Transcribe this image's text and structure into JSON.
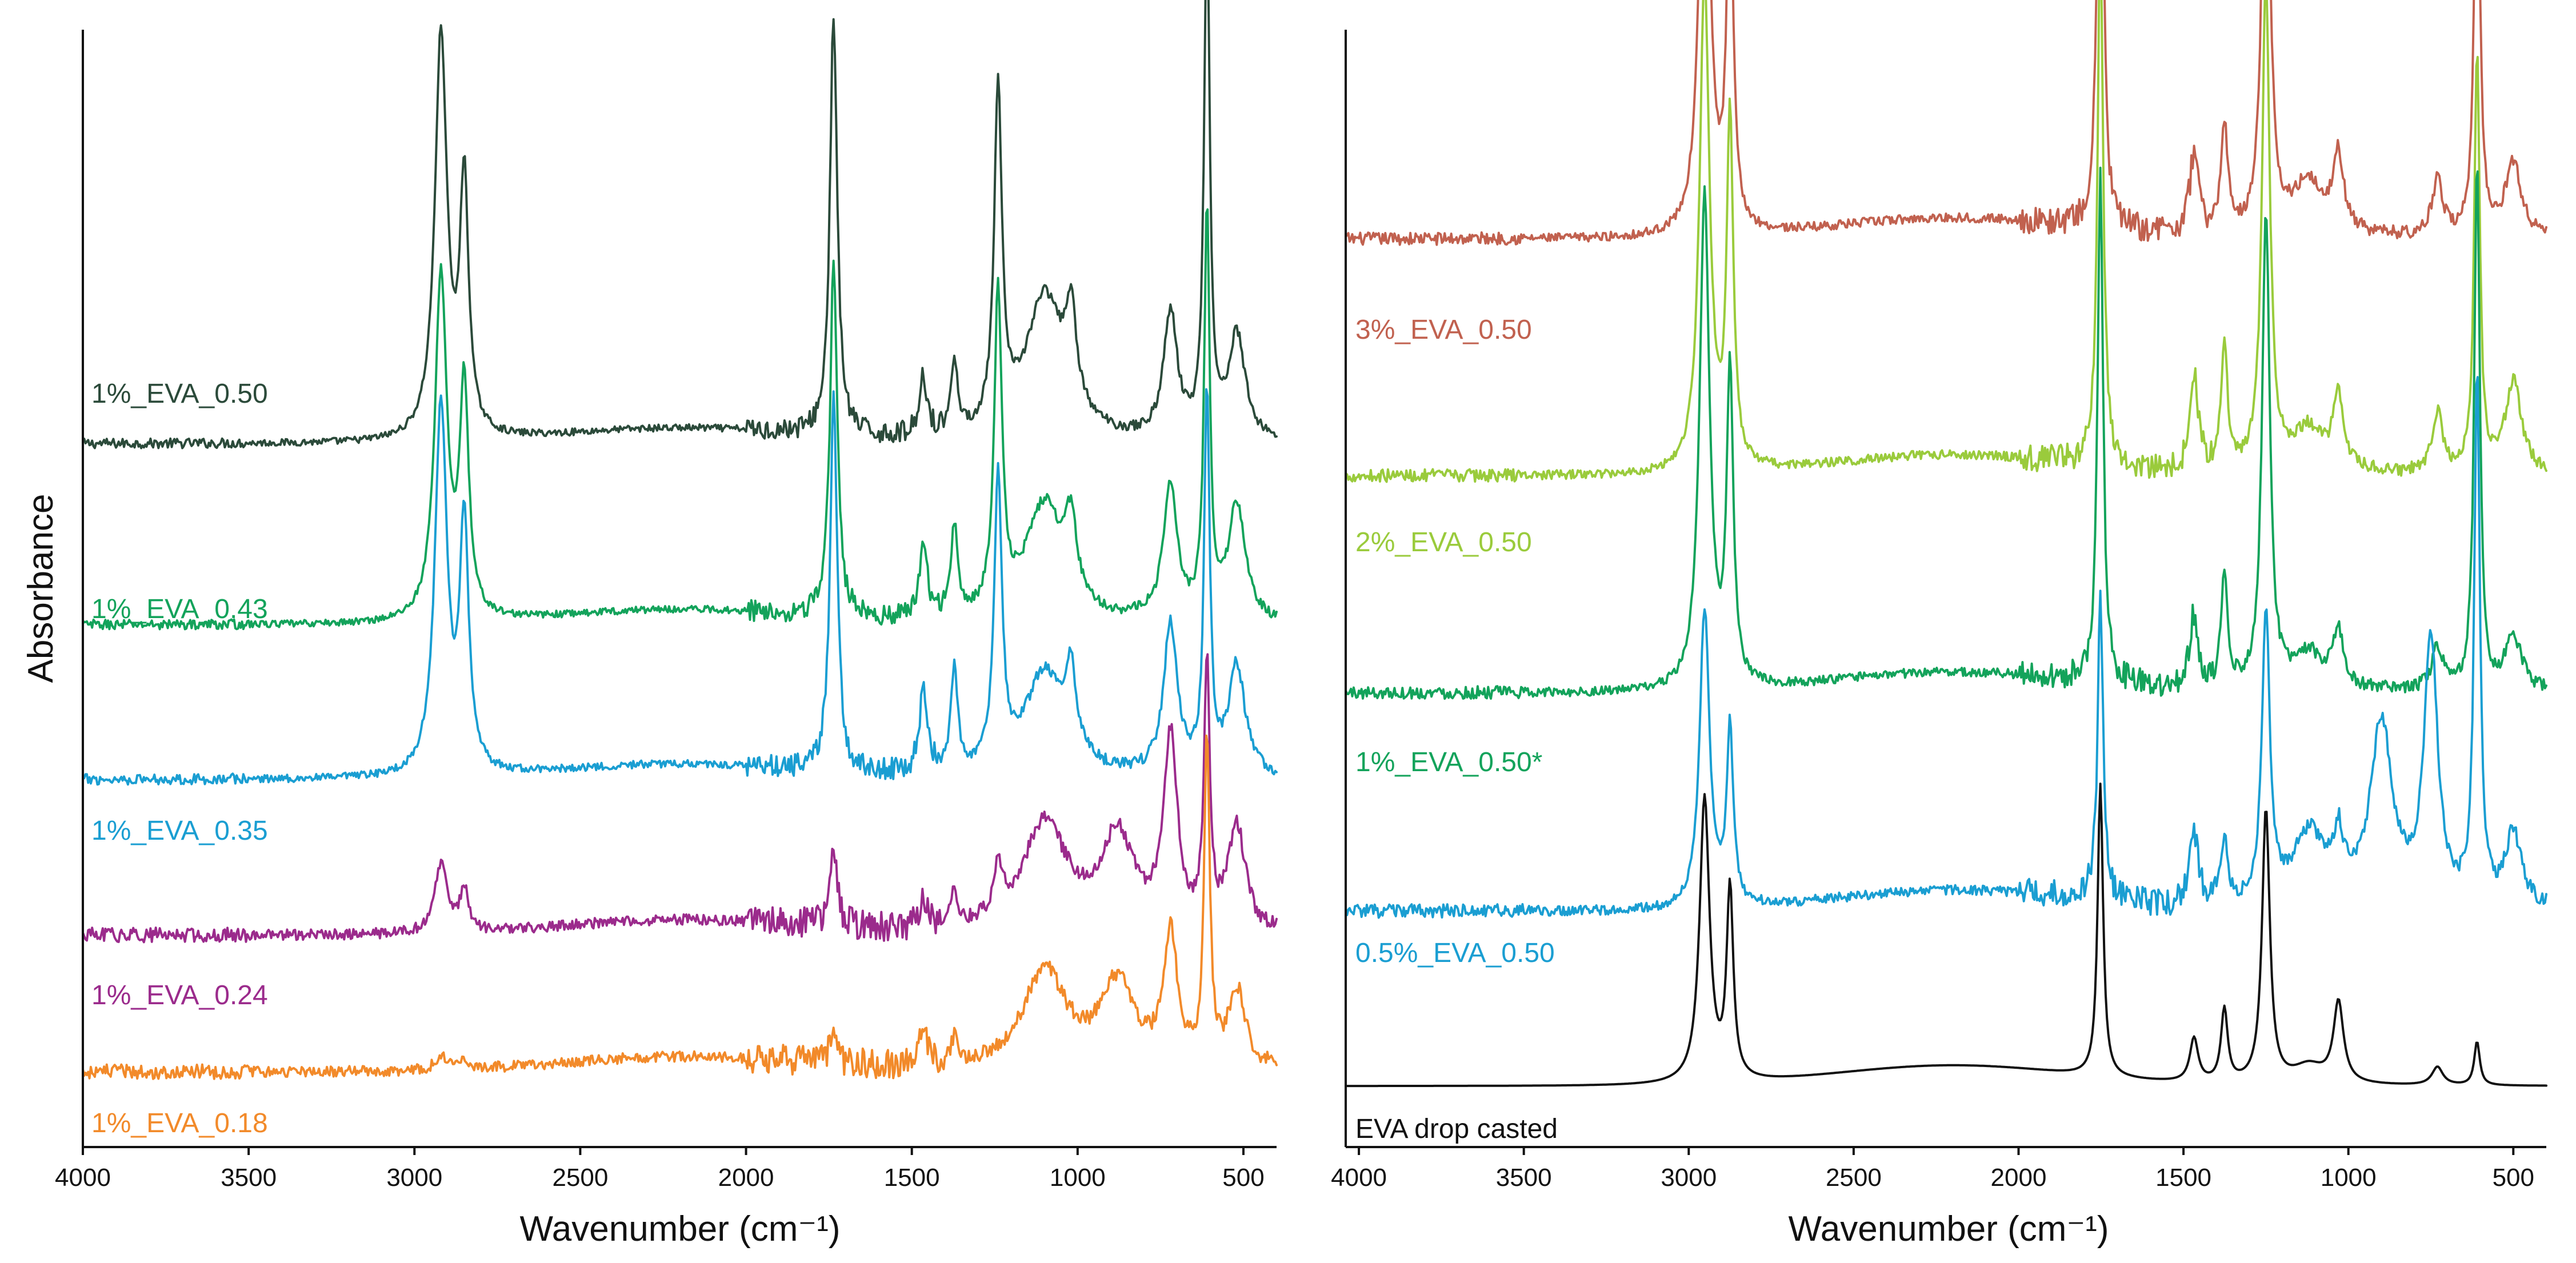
{
  "chart_data": [
    {
      "type": "line",
      "panel": "left",
      "xlabel": "Wavenumber (cm⁻¹)",
      "ylabel": "Absorbance",
      "xlim": [
        4000,
        400
      ],
      "x_reversed": true,
      "x_ticks": [
        4000,
        3500,
        3000,
        2500,
        2000,
        1500,
        1000,
        500
      ],
      "y_ticks": [],
      "grid": false,
      "legend": "inline labels left of each trace",
      "series": [
        {
          "name": "1%_EVA_0.50",
          "color": "#2b4a3a",
          "baseline": 0.82,
          "edge": 1.08,
          "noise": 0.012,
          "peaks": [
            [
              2920,
              1.55,
              22
            ],
            [
              2850,
              0.96,
              16
            ],
            [
              1736,
              1.62,
              13
            ],
            [
              1465,
              0.22,
              15
            ],
            [
              1372,
              0.28,
              12
            ],
            [
              1240,
              1.28,
              14
            ],
            [
              1100,
              0.55,
              70
            ],
            [
              1020,
              0.35,
              20
            ],
            [
              720,
              0.48,
              25
            ],
            [
              610,
              2.0,
              10
            ],
            [
              520,
              0.4,
              30
            ]
          ]
        },
        {
          "name": "1%_EVA_0.43",
          "color": "#13a35b",
          "baseline": 0.66,
          "edge": 0.9,
          "noise": 0.012,
          "peaks": [
            [
              2920,
              1.32,
              22
            ],
            [
              2850,
              0.88,
              16
            ],
            [
              1736,
              1.36,
              13
            ],
            [
              1465,
              0.26,
              15
            ],
            [
              1372,
              0.35,
              12
            ],
            [
              1240,
              1.22,
              14
            ],
            [
              1100,
              0.45,
              70
            ],
            [
              1020,
              0.28,
              20
            ],
            [
              720,
              0.52,
              25
            ],
            [
              610,
              1.55,
              10
            ],
            [
              520,
              0.45,
              30
            ]
          ]
        },
        {
          "name": "1%_EVA_0.35",
          "color": "#1a9ed2",
          "baseline": 0.44,
          "edge": 0.65,
          "noise": 0.013,
          "peaks": [
            [
              2920,
              1.42,
              22
            ],
            [
              2850,
              0.95,
              16
            ],
            [
              1736,
              1.42,
              13
            ],
            [
              1465,
              0.3,
              15
            ],
            [
              1372,
              0.4,
              12
            ],
            [
              1240,
              1.12,
              14
            ],
            [
              1100,
              0.4,
              70
            ],
            [
              1020,
              0.3,
              20
            ],
            [
              720,
              0.58,
              25
            ],
            [
              610,
              1.45,
              10
            ],
            [
              520,
              0.42,
              30
            ]
          ]
        },
        {
          "name": "1%_EVA_0.24",
          "color": "#9b2b8c",
          "baseline": 0.2,
          "edge": 0.38,
          "noise": 0.018,
          "peaks": [
            [
              2920,
              0.26,
              22
            ],
            [
              2850,
              0.16,
              16
            ],
            [
              1736,
              0.32,
              13
            ],
            [
              1465,
              0.12,
              15
            ],
            [
              1372,
              0.15,
              12
            ],
            [
              1240,
              0.2,
              14
            ],
            [
              1100,
              0.42,
              80
            ],
            [
              880,
              0.36,
              60
            ],
            [
              720,
              0.72,
              25
            ],
            [
              610,
              1.0,
              10
            ],
            [
              520,
              0.4,
              30
            ]
          ]
        },
        {
          "name": "1%_EVA_0.18",
          "color": "#f28a2a",
          "baseline": 0.06,
          "edge": 0.2,
          "noise": 0.018,
          "peaks": [
            [
              2920,
              0.05,
              22
            ],
            [
              2850,
              0.03,
              16
            ],
            [
              1736,
              0.12,
              13
            ],
            [
              1465,
              0.12,
              15
            ],
            [
              1372,
              0.1,
              12
            ],
            [
              1100,
              0.38,
              80
            ],
            [
              880,
              0.32,
              60
            ],
            [
              720,
              0.5,
              25
            ],
            [
              610,
              1.25,
              10
            ],
            [
              520,
              0.3,
              30
            ]
          ]
        }
      ]
    },
    {
      "type": "line",
      "panel": "right",
      "xlabel": "Wavenumber (cm⁻¹)",
      "xlim": [
        4040,
        400
      ],
      "x_reversed": true,
      "x_ticks": [
        4000,
        3500,
        3000,
        2500,
        2000,
        1500,
        1000,
        500
      ],
      "y_ticks": [],
      "grid": false,
      "legend": "inline labels left of each trace",
      "series": [
        {
          "name": "3%_EVA_0.50",
          "color": "#c1614f",
          "baseline": 0.9,
          "edge": 1.02,
          "noise": 0.011,
          "peaks": [
            [
              2952,
              1.42,
              18
            ],
            [
              2875,
              0.95,
              12
            ],
            [
              1752,
              1.62,
              10
            ],
            [
              1468,
              0.22,
              15
            ],
            [
              1376,
              0.3,
              12
            ],
            [
              1250,
              1.35,
              14
            ],
            [
              1120,
              0.15,
              60
            ],
            [
              1030,
              0.2,
              18
            ],
            [
              730,
              0.15,
              20
            ],
            [
              610,
              1.25,
              10
            ],
            [
              500,
              0.2,
              30
            ]
          ]
        },
        {
          "name": "2%_EVA_0.50",
          "color": "#9acb3c",
          "baseline": 0.68,
          "edge": 0.78,
          "noise": 0.011,
          "peaks": [
            [
              2952,
              1.35,
              18
            ],
            [
              2875,
              0.95,
              12
            ],
            [
              1752,
              1.45,
              10
            ],
            [
              1468,
              0.25,
              15
            ],
            [
              1376,
              0.33,
              12
            ],
            [
              1250,
              1.35,
              14
            ],
            [
              1120,
              0.12,
              60
            ],
            [
              1030,
              0.2,
              18
            ],
            [
              730,
              0.16,
              20
            ],
            [
              610,
              1.15,
              10
            ],
            [
              500,
              0.25,
              30
            ]
          ]
        },
        {
          "name": "1%_EVA_0.50*",
          "color": "#13a35b",
          "baseline": 0.45,
          "edge": 0.55,
          "noise": 0.011,
          "peaks": [
            [
              2952,
              1.35,
              18
            ],
            [
              2875,
              0.85,
              12
            ],
            [
              1752,
              1.4,
              10
            ],
            [
              1468,
              0.2,
              15
            ],
            [
              1376,
              0.3,
              12
            ],
            [
              1250,
              1.3,
              14
            ],
            [
              1120,
              0.1,
              60
            ],
            [
              1030,
              0.15,
              18
            ],
            [
              730,
              0.12,
              20
            ],
            [
              610,
              1.45,
              10
            ],
            [
              500,
              0.15,
              30
            ]
          ]
        },
        {
          "name": "0.5%_EVA_0.50",
          "color": "#1a9ed2",
          "baseline": 0.2,
          "edge": 0.3,
          "noise": 0.012,
          "peaks": [
            [
              2952,
              0.82,
              18
            ],
            [
              2875,
              0.48,
              12
            ],
            [
              1752,
              0.84,
              10
            ],
            [
              1468,
              0.2,
              15
            ],
            [
              1376,
              0.18,
              12
            ],
            [
              1250,
              0.8,
              14
            ],
            [
              1120,
              0.2,
              60
            ],
            [
              1030,
              0.15,
              18
            ],
            [
              900,
              0.5,
              40
            ],
            [
              750,
              0.72,
              25
            ],
            [
              610,
              1.45,
              10
            ],
            [
              500,
              0.2,
              30
            ]
          ]
        },
        {
          "name": "EVA drop casted",
          "color": "#111111",
          "baseline": 0.0,
          "edge": 0.0,
          "noise": 0.0,
          "peaks": [
            [
              2952,
              0.78,
              18
            ],
            [
              2875,
              0.52,
              12
            ],
            [
              1752,
              0.8,
              10
            ],
            [
              1468,
              0.12,
              15
            ],
            [
              1376,
              0.2,
              12
            ],
            [
              1250,
              0.75,
              14
            ],
            [
              1120,
              0.05,
              60
            ],
            [
              1030,
              0.22,
              18
            ],
            [
              730,
              0.05,
              20
            ],
            [
              610,
              0.12,
              10
            ]
          ]
        }
      ]
    }
  ]
}
